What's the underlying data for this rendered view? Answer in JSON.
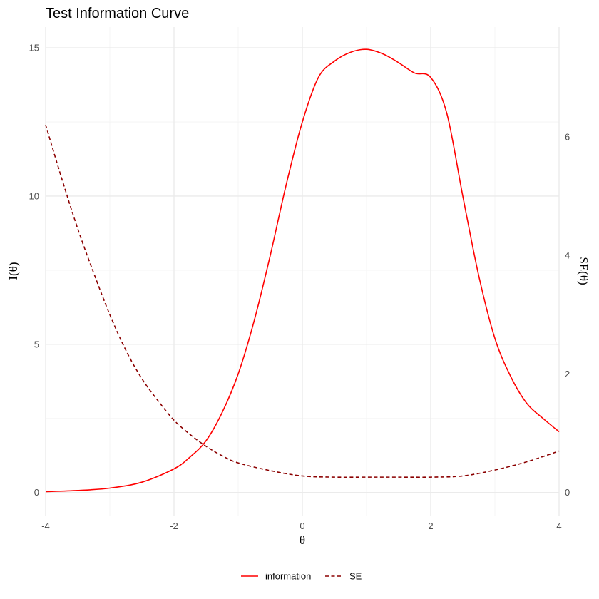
{
  "chart_data": {
    "type": "line",
    "title": "Test Information Curve",
    "xlabel": "θ",
    "ylabel": "I(θ)",
    "y2label": "SE(θ)",
    "xlim": [
      -4,
      4
    ],
    "ylim": [
      -0.8,
      15.7
    ],
    "y2lim": [
      -0.4,
      7.85
    ],
    "xticks": [
      -4,
      -2,
      0,
      2,
      4
    ],
    "yticks": [
      0,
      5,
      10,
      15
    ],
    "y2ticks": [
      0,
      2,
      4,
      6
    ],
    "grid": true,
    "legend_position": "bottom",
    "series": [
      {
        "name": "information",
        "axis": "left",
        "color": "#ff0000",
        "linestyle": "solid",
        "x": [
          -4,
          -3.5,
          -3,
          -2.5,
          -2,
          -1.75,
          -1.5,
          -1.25,
          -1,
          -0.75,
          -0.5,
          -0.25,
          0,
          0.25,
          0.5,
          0.75,
          1,
          1.25,
          1.5,
          1.75,
          2,
          2.25,
          2.5,
          2.75,
          3,
          3.25,
          3.5,
          3.75,
          4
        ],
        "y": [
          0.03,
          0.07,
          0.15,
          0.35,
          0.8,
          1.2,
          1.75,
          2.7,
          4.0,
          5.8,
          8.0,
          10.4,
          12.5,
          14.0,
          14.55,
          14.85,
          14.95,
          14.8,
          14.5,
          14.15,
          14.0,
          12.8,
          10.0,
          7.3,
          5.2,
          3.9,
          3.0,
          2.5,
          2.05
        ]
      },
      {
        "name": "SE",
        "axis": "right",
        "color": "#8b0000",
        "linestyle": "dashed",
        "x": [
          -4,
          -3.75,
          -3.5,
          -3.25,
          -3,
          -2.75,
          -2.5,
          -2.25,
          -2,
          -1.75,
          -1.5,
          -1.25,
          -1,
          -0.5,
          0,
          0.5,
          1,
          1.5,
          2,
          2.5,
          3,
          3.5,
          4
        ],
        "y": [
          6.2,
          5.3,
          4.45,
          3.7,
          3.0,
          2.4,
          1.92,
          1.55,
          1.22,
          0.98,
          0.78,
          0.62,
          0.5,
          0.37,
          0.28,
          0.26,
          0.26,
          0.26,
          0.26,
          0.28,
          0.38,
          0.52,
          0.7
        ]
      }
    ]
  }
}
